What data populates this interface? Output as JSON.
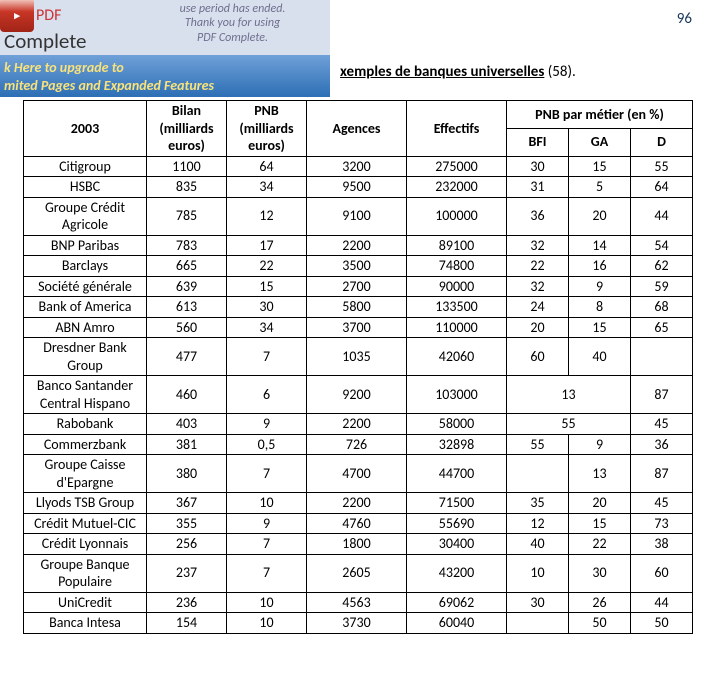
{
  "page_number": "96",
  "watermark": {
    "pdf_red": "PDF",
    "complete": "Complete",
    "msg_l1": "use period has ended.",
    "msg_l2": "Thank you for using",
    "msg_l3": "PDF Complete.",
    "upgrade_l1": "k Here to upgrade to",
    "upgrade_l2": "mited Pages and Expanded Features"
  },
  "title": {
    "prefix": "",
    "underlined": "xemples de banques universelles",
    "suffix": " (58)."
  },
  "table": {
    "headers": {
      "year": "2003",
      "bilan": "Bilan (milliards euros)",
      "pnb": "PNB (milliards euros)",
      "agences": "Agences",
      "effectifs": "Effectifs",
      "pnb_metier": "PNB par métier (en %)",
      "bfi": "BFI",
      "ga": "GA",
      "d": "D"
    },
    "rows": [
      {
        "name": "Citigroup",
        "bilan": "1100",
        "pnb": "64",
        "agences": "3200",
        "effectifs": "275000",
        "bfi": "30",
        "ga": "15",
        "d": "55"
      },
      {
        "name": "HSBC",
        "bilan": "835",
        "pnb": "34",
        "agences": "9500",
        "effectifs": "232000",
        "bfi": "31",
        "ga": "5",
        "d": "64"
      },
      {
        "name": "Groupe Crédit Agricole",
        "bilan": "785",
        "pnb": "12",
        "agences": "9100",
        "effectifs": "100000",
        "bfi": "36",
        "ga": "20",
        "d": "44"
      },
      {
        "name": "BNP Paribas",
        "bilan": "783",
        "pnb": "17",
        "agences": "2200",
        "effectifs": "89100",
        "bfi": "32",
        "ga": "14",
        "d": "54"
      },
      {
        "name": "Barclays",
        "bilan": "665",
        "pnb": "22",
        "agences": "3500",
        "effectifs": "74800",
        "bfi": "22",
        "ga": "16",
        "d": "62"
      },
      {
        "name": "Société générale",
        "bilan": "639",
        "pnb": "15",
        "agences": "2700",
        "effectifs": "90000",
        "bfi": "32",
        "ga": "9",
        "d": "59"
      },
      {
        "name": "Bank of America",
        "bilan": "613",
        "pnb": "30",
        "agences": "5800",
        "effectifs": "133500",
        "bfi": "24",
        "ga": "8",
        "d": "68"
      },
      {
        "name": "ABN Amro",
        "bilan": "560",
        "pnb": "34",
        "agences": "3700",
        "effectifs": "110000",
        "bfi": "20",
        "ga": "15",
        "d": "65"
      },
      {
        "name": "Dresdner Bank Group",
        "bilan": "477",
        "pnb": "7",
        "agences": "1035",
        "effectifs": "42060",
        "bfi": "60",
        "ga": "40",
        "d": ""
      },
      {
        "name": "Banco Santander Central Hispano",
        "bilan": "460",
        "pnb": "6",
        "agences": "9200",
        "effectifs": "103000",
        "merge_bfi_ga": "13",
        "d": "87"
      },
      {
        "name": "Rabobank",
        "bilan": "403",
        "pnb": "9",
        "agences": "2200",
        "effectifs": "58000",
        "merge_bfi_ga": "55",
        "d": "45"
      },
      {
        "name": "Commerzbank",
        "bilan": "381",
        "pnb": "0,5",
        "agences": "726",
        "effectifs": "32898",
        "bfi": "55",
        "ga": "9",
        "d": "36"
      },
      {
        "name": "Groupe Caisse d'Epargne",
        "bilan": "380",
        "pnb": "7",
        "agences": "4700",
        "effectifs": "44700",
        "bfi": "",
        "ga": "13",
        "d": "87"
      },
      {
        "name": "Llyods TSB Group",
        "bilan": "367",
        "pnb": "10",
        "agences": "2200",
        "effectifs": "71500",
        "bfi": "35",
        "ga": "20",
        "d": "45"
      },
      {
        "name": "Crédit Mutuel-CIC",
        "bilan": "355",
        "pnb": "9",
        "agences": "4760",
        "effectifs": "55690",
        "bfi": "12",
        "ga": "15",
        "d": "73"
      },
      {
        "name": "Crédit Lyonnais",
        "bilan": "256",
        "pnb": "7",
        "agences": "1800",
        "effectifs": "30400",
        "bfi": "40",
        "ga": "22",
        "d": "38"
      },
      {
        "name": "Groupe Banque Populaire",
        "bilan": "237",
        "pnb": "7",
        "agences": "2605",
        "effectifs": "43200",
        "bfi": "10",
        "ga": "30",
        "d": "60"
      },
      {
        "name": "UniCredit",
        "bilan": "236",
        "pnb": "10",
        "agences": "4563",
        "effectifs": "69062",
        "bfi": "30",
        "ga": "26",
        "d": "44"
      },
      {
        "name": "Banca Intesa",
        "bilan": "154",
        "pnb": "10",
        "agences": "3730",
        "effectifs": "60040",
        "bfi": "",
        "ga": "50",
        "d": "50"
      }
    ]
  }
}
